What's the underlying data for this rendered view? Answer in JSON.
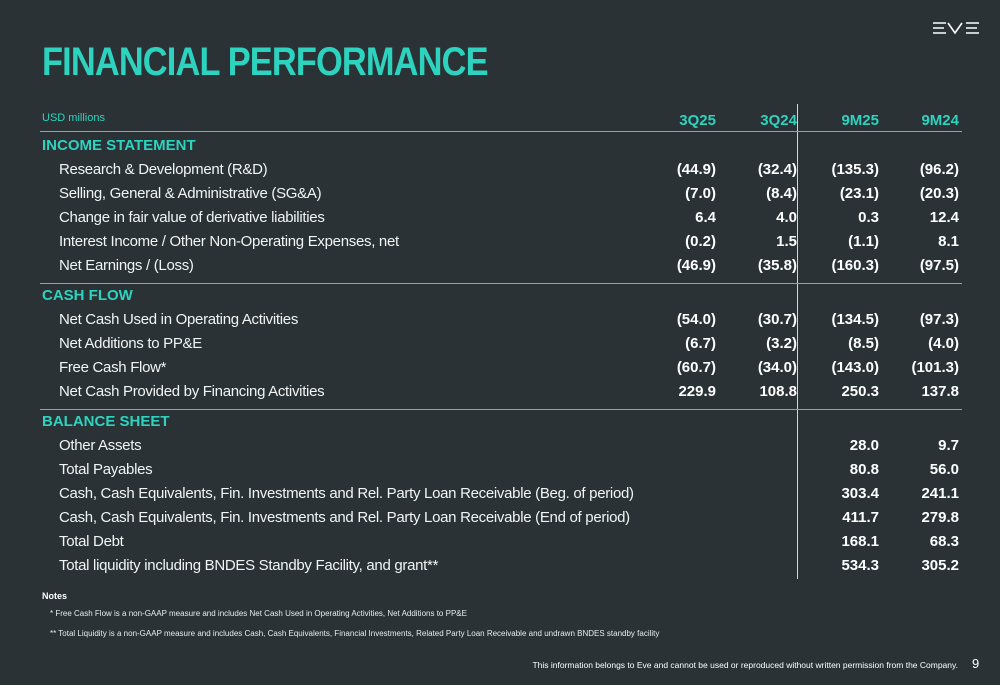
{
  "header": {
    "title": "FINANCIAL PERFORMANCE",
    "units": "USD millions",
    "columns": [
      "3Q25",
      "3Q24",
      "9M25",
      "9M24"
    ]
  },
  "sections": [
    {
      "title": "INCOME STATEMENT",
      "rows": [
        {
          "label": "Research & Development (R&D)",
          "values": [
            "(44.9)",
            "(32.4)",
            "(135.3)",
            "(96.2)"
          ]
        },
        {
          "label": "Selling, General & Administrative (SG&A)",
          "values": [
            "(7.0)",
            "(8.4)",
            "(23.1)",
            "(20.3)"
          ]
        },
        {
          "label": "Change in fair value of derivative liabilities",
          "values": [
            "6.4",
            "4.0",
            "0.3",
            "12.4"
          ]
        },
        {
          "label": "Interest Income / Other Non-Operating Expenses, net",
          "values": [
            "(0.2)",
            "1.5",
            "(1.1)",
            "8.1"
          ]
        },
        {
          "label": "Net Earnings / (Loss)",
          "values": [
            "(46.9)",
            "(35.8)",
            "(160.3)",
            "(97.5)"
          ]
        }
      ]
    },
    {
      "title": "CASH FLOW",
      "rows": [
        {
          "label": "Net Cash Used in Operating Activities",
          "values": [
            "(54.0)",
            "(30.7)",
            "(134.5)",
            "(97.3)"
          ]
        },
        {
          "label": "Net Additions to PP&E",
          "values": [
            "(6.7)",
            "(3.2)",
            "(8.5)",
            "(4.0)"
          ]
        },
        {
          "label": "Free Cash Flow*",
          "values": [
            "(60.7)",
            "(34.0)",
            "(143.0)",
            "(101.3)"
          ]
        },
        {
          "label": "Net Cash Provided by Financing Activities",
          "values": [
            "229.9",
            "108.8",
            "250.3",
            "137.8"
          ]
        }
      ]
    },
    {
      "title": "BALANCE SHEET",
      "rows": [
        {
          "label": "Other Assets",
          "values": [
            "28.0",
            "9.7"
          ]
        },
        {
          "label": "Total Payables",
          "values": [
            "80.8",
            "56.0"
          ]
        },
        {
          "label": "Cash, Cash Equivalents, Fin. Investments and Rel. Party Loan Receivable (Beg. of period)",
          "values": [
            "303.4",
            "241.1"
          ]
        },
        {
          "label": "Cash, Cash Equivalents, Fin. Investments and Rel. Party Loan Receivable (End of period)",
          "values": [
            "411.7",
            "279.8"
          ]
        },
        {
          "label": "Total Debt",
          "values": [
            "168.1",
            "68.3"
          ]
        },
        {
          "label": "Total liquidity including BNDES Standby Facility, and grant**",
          "values": [
            "534.3",
            "305.2"
          ]
        }
      ]
    }
  ],
  "notes": {
    "title": "Notes",
    "items": [
      "* Free Cash Flow is a non-GAAP measure and includes Net Cash Used in Operating Activities, Net Additions to PP&E",
      "** Total Liquidity is a non-GAAP measure and includes Cash, Cash Equivalents, Financial Investments, Related Party Loan Receivable and undrawn BNDES standby facility"
    ]
  },
  "footer": {
    "disclaimer": "This information belongs to Eve and cannot be used or reproduced without written permission from the Company.",
    "page": "9"
  }
}
